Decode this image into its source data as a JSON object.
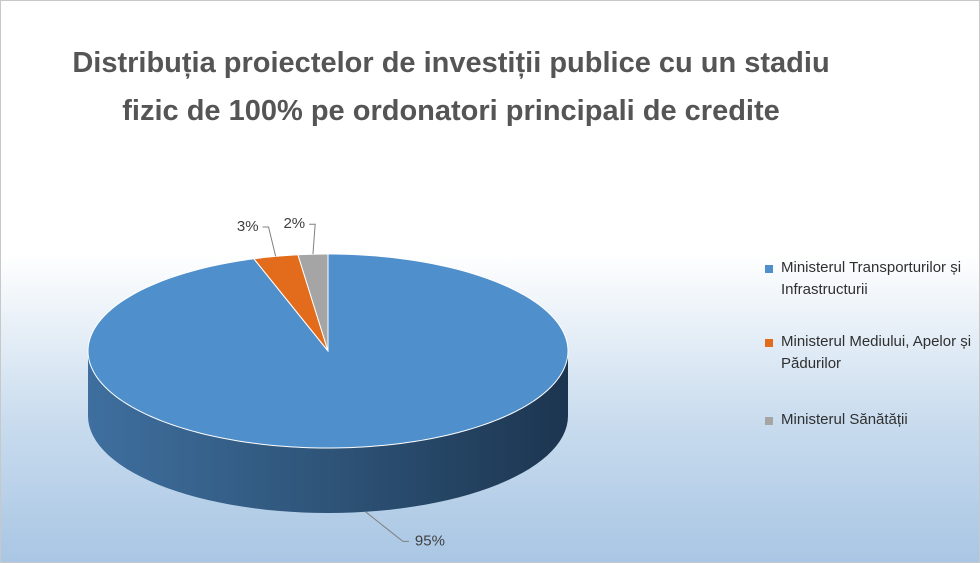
{
  "chart_data": {
    "type": "pie",
    "title": "Distribuția proiectelor de investiții publice cu un stadiu fizic de 100% pe ordonatori principali de credite",
    "categories": [
      "Ministerul Transporturilor și Infrastructurii",
      "Ministerul Mediului, Apelor și Pădurilor",
      "Ministerul Sănătății"
    ],
    "values": [
      95,
      3,
      2
    ],
    "value_labels": [
      "95%",
      "3%",
      "2%"
    ],
    "colors": [
      "#4f8fcc",
      "#e36c1c",
      "#a5a5a5"
    ],
    "legend": "right"
  }
}
